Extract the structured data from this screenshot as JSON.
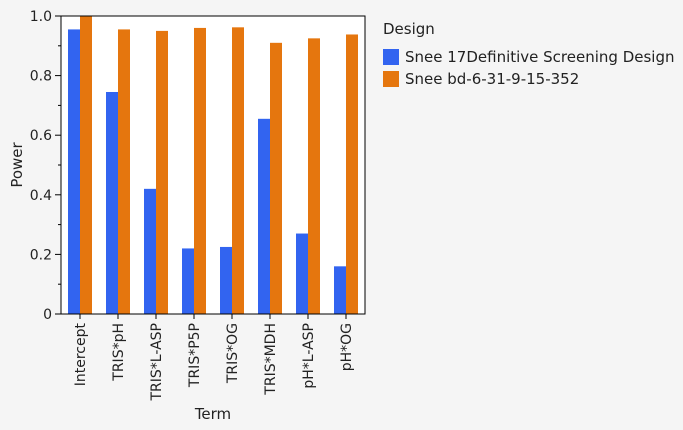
{
  "chart_data": {
    "type": "bar",
    "xlabel": "Term",
    "ylabel": "Power",
    "ylim": [
      0,
      1.0
    ],
    "yticks": [
      "0",
      "0.2",
      "0.4",
      "0.6",
      "0.8",
      "1.0"
    ],
    "categories": [
      "Intercept",
      "TRIS*pH",
      "TRIS*L-ASP",
      "TRIS*P5P",
      "TRIS*OG",
      "TRIS*MDH",
      "pH*L-ASP",
      "pH*OG"
    ],
    "legend_title": "Design",
    "legend_position": "right",
    "grid": false,
    "series": [
      {
        "name": "Snee 17Definitive Screening Design",
        "color": "#3264f0",
        "values": [
          0.955,
          0.745,
          0.42,
          0.22,
          0.225,
          0.655,
          0.27,
          0.16
        ]
      },
      {
        "name": "Snee bd-6-31-9-15-352",
        "color": "#e5760e",
        "values": [
          1.0,
          0.955,
          0.95,
          0.96,
          0.962,
          0.91,
          0.925,
          0.938
        ]
      }
    ]
  }
}
